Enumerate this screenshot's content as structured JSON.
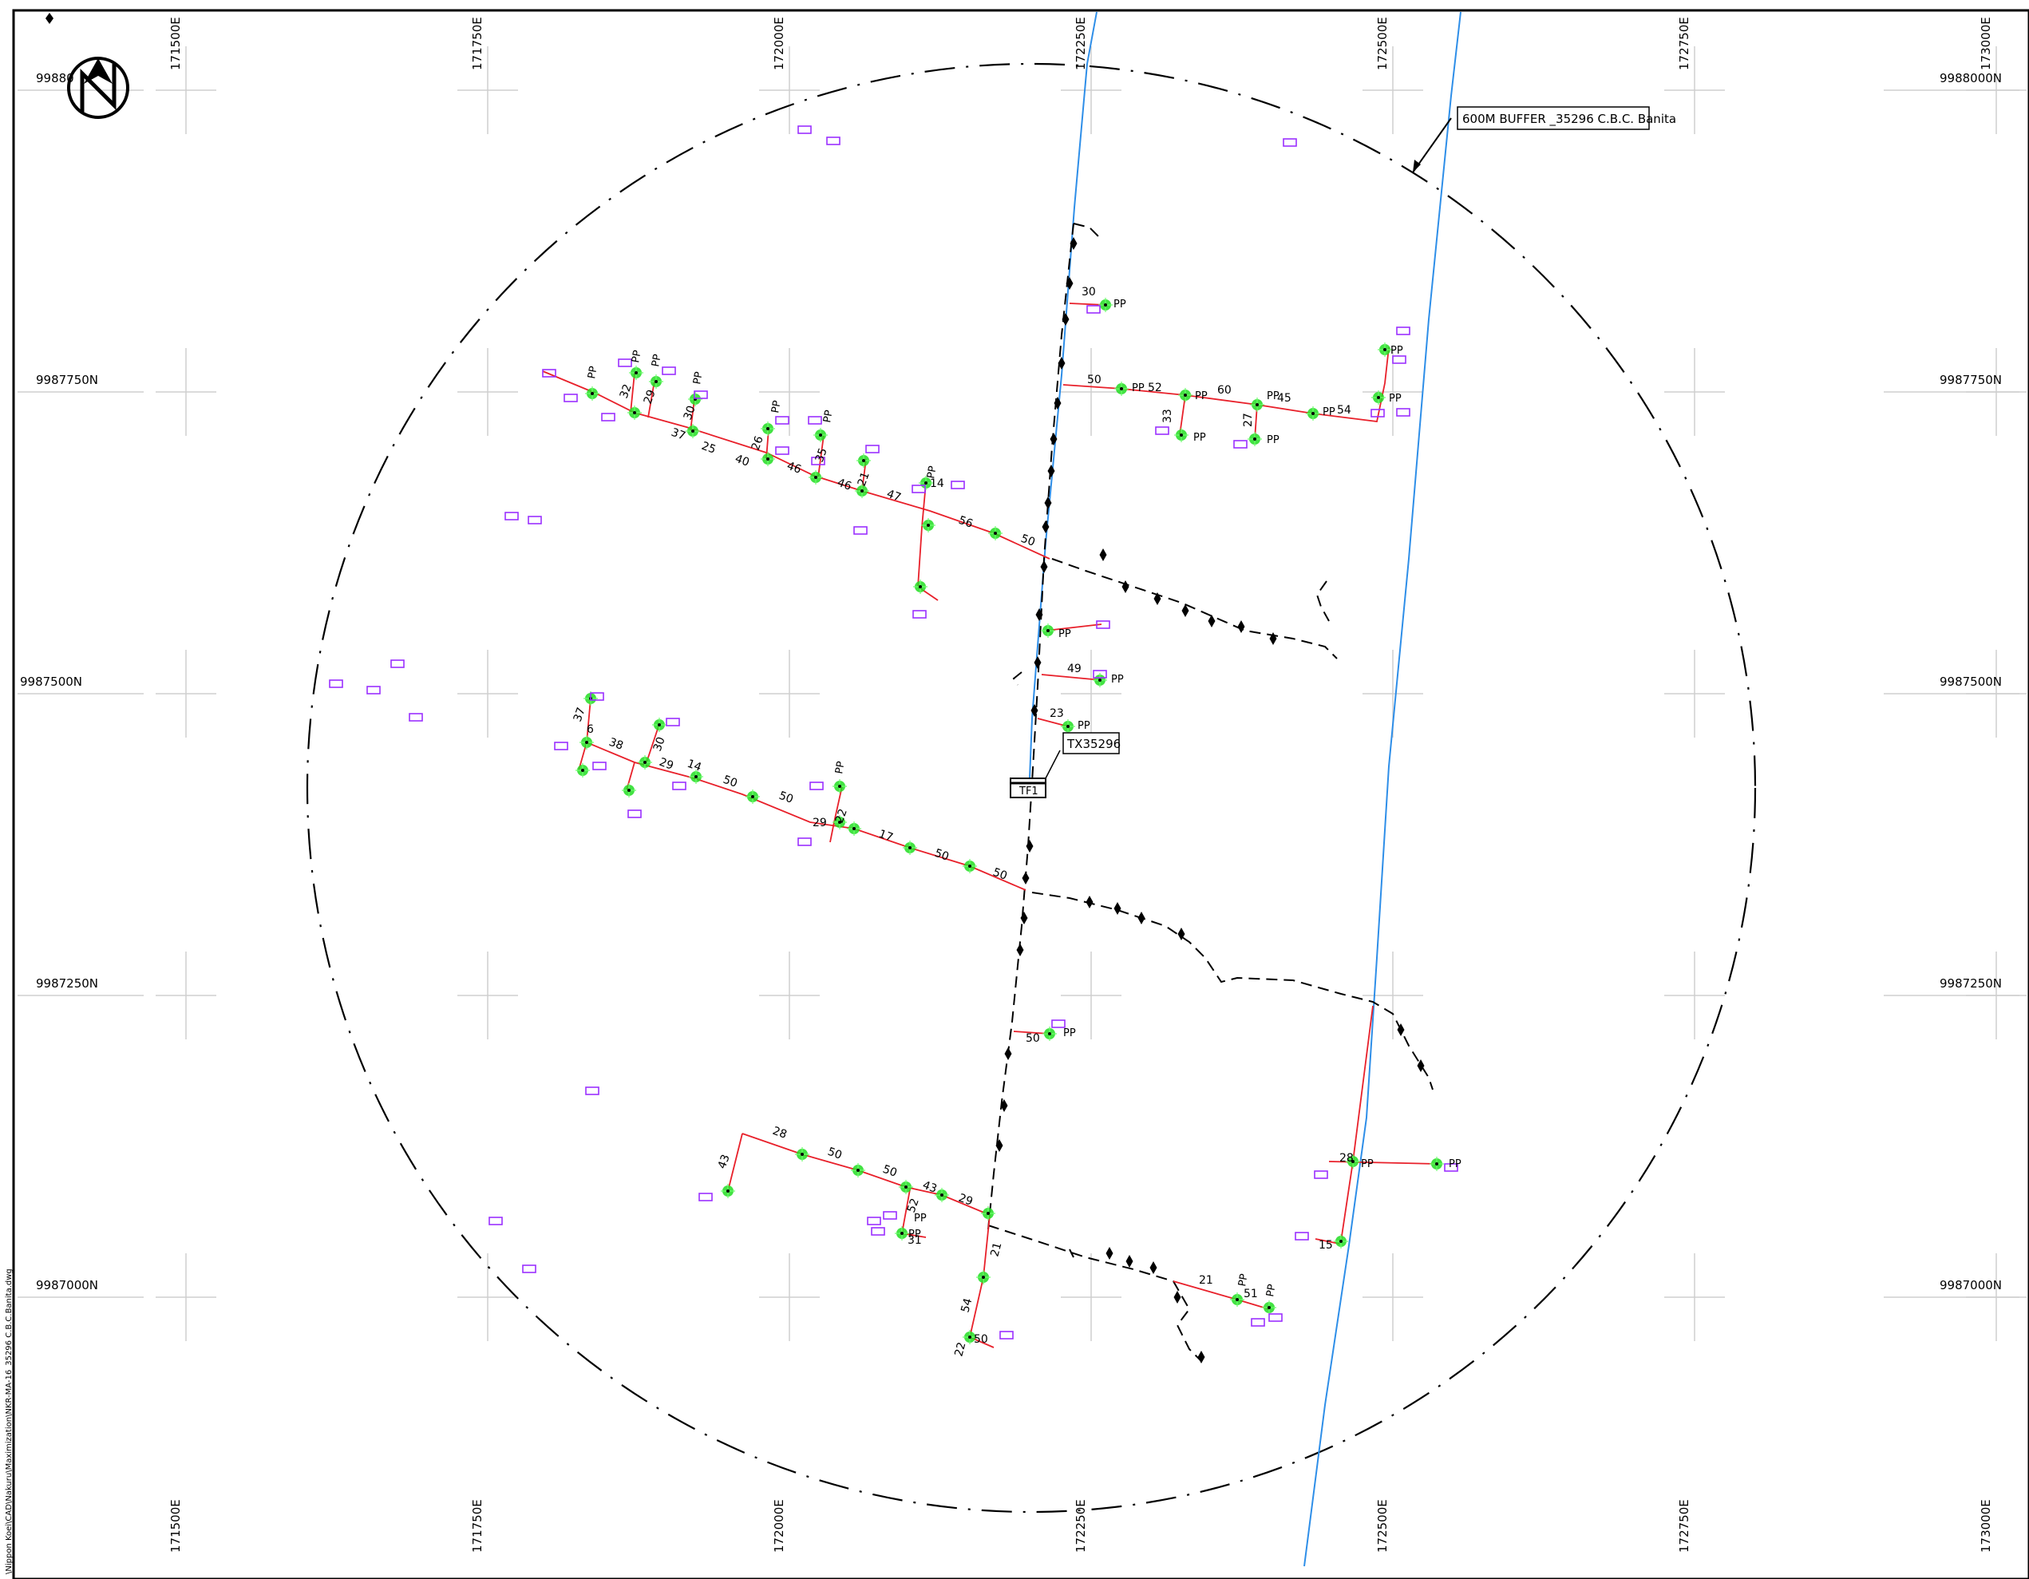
{
  "map": {
    "buffer_label": "600M BUFFER _35296 C.B.C. Banita",
    "transformer_label": "TX35296",
    "transformer_symbol": "TF1",
    "file_path": "\\Nippon Koei\\CAD\\Nakuru\\Maximization\\NKR-MA-16_35296 C.B.C.Banita.dwg",
    "north_symbol": "N",
    "colors": {
      "lv_line": "#e8202a",
      "river": "#2e8ee8",
      "building": "#9b30ff",
      "pole": "#22dd22",
      "buffer": "#000000"
    },
    "eastings": [
      "171500E",
      "171750E",
      "172000E",
      "172250E",
      "172500E",
      "172750E",
      "173000E"
    ],
    "northings_left": [
      "99880",
      "9987750N",
      "9987500N",
      "9987250N",
      "9987000N"
    ],
    "northings_right": [
      "9988000N",
      "9987750N",
      "9987500N",
      "9987250N",
      "9987000N"
    ],
    "span_labels": [
      "30",
      "50",
      "52",
      "60",
      "45",
      "54",
      "33",
      "27",
      "32",
      "29",
      "30",
      "26",
      "35",
      "21",
      "14",
      "37",
      "25",
      "40",
      "46",
      "46",
      "47",
      "56",
      "50",
      "49",
      "23",
      "37",
      "6",
      "38",
      "30",
      "29",
      "14",
      "50",
      "50",
      "29",
      "22",
      "17",
      "50",
      "50",
      "50",
      "28",
      "50",
      "50",
      "43",
      "29",
      "43",
      "52",
      "31",
      "21",
      "54",
      "50",
      "22",
      "21",
      "51",
      "28",
      "15",
      "21"
    ],
    "pole_tag": "PP"
  }
}
